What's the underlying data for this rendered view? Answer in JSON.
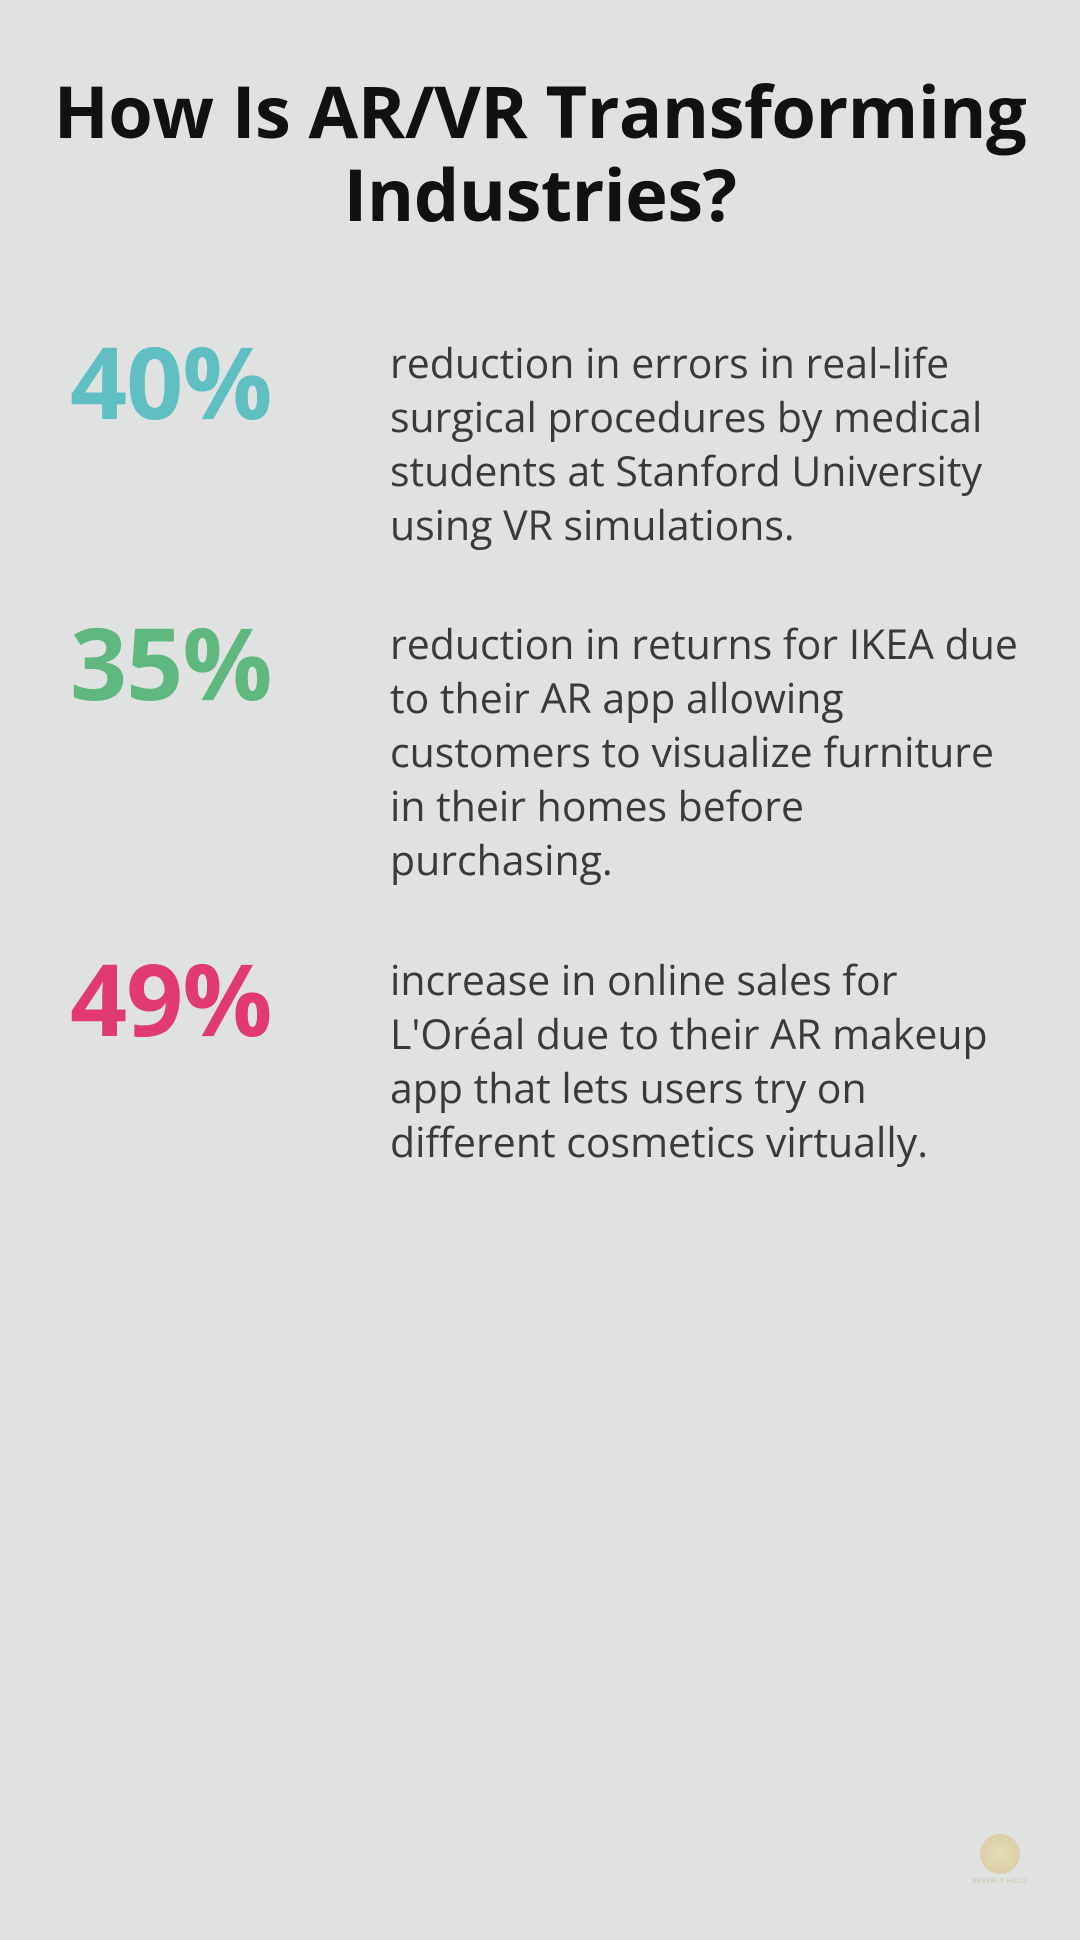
{
  "title": "How Is AR/VR Transforming Industries?",
  "background_color": "#e0e2e2",
  "title_color": "#111111",
  "title_fontsize": 72,
  "stat_value_fontsize": 100,
  "stat_desc_fontsize": 41,
  "stat_desc_color": "#3a3a3a",
  "stats": [
    {
      "value": "40%",
      "color": "#5fbfc1",
      "description": "reduction in errors in real-life surgical procedures by medical students at Stanford University using VR simulations."
    },
    {
      "value": "35%",
      "color": "#5fb880",
      "description": "reduction in returns for IKEA due to their AR app allowing customers to visualize furniture in their homes before purchasing."
    },
    {
      "value": "49%",
      "color": "#e13a72",
      "description": "increase in online sales for L'Oréal due to their AR makeup app that lets users try on different cosmetics virtually."
    }
  ],
  "logo_text": "BEVERLY HILLS"
}
